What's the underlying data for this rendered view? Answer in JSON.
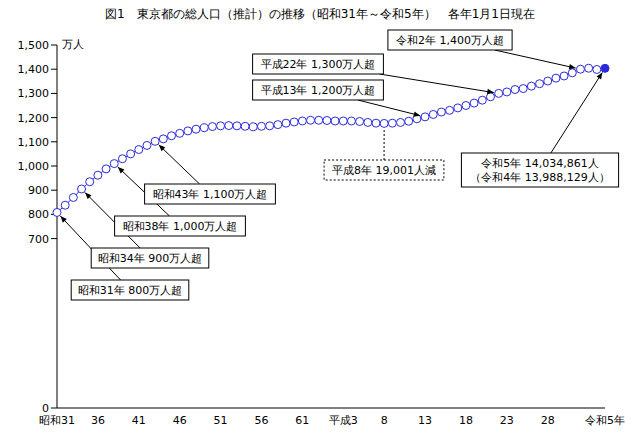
{
  "chart_data": {
    "type": "line",
    "title": "図1　東京都の総人口（推計）の推移（昭和31年～令和5年）",
    "subtitle": "各年1月1日現在",
    "y_label": "万人",
    "categories": [
      "昭和31",
      null,
      null,
      null,
      null,
      "36",
      null,
      null,
      null,
      null,
      "41",
      null,
      null,
      null,
      null,
      "46",
      null,
      null,
      null,
      null,
      "51",
      null,
      null,
      null,
      null,
      "56",
      null,
      null,
      null,
      null,
      "61",
      null,
      null,
      null,
      null,
      "平成3",
      null,
      null,
      null,
      null,
      "8",
      null,
      null,
      null,
      null,
      "13",
      null,
      null,
      null,
      null,
      "18",
      null,
      null,
      null,
      null,
      "23",
      null,
      null,
      null,
      null,
      "28",
      null,
      null,
      null,
      null,
      null,
      null,
      "令和5年"
    ],
    "values": [
      808,
      838,
      870,
      905,
      935,
      962,
      988,
      1010,
      1030,
      1050,
      1068,
      1085,
      1102,
      1112,
      1125,
      1135,
      1145,
      1152,
      1158,
      1163,
      1166,
      1167,
      1166,
      1164,
      1162,
      1164,
      1166,
      1171,
      1177,
      1182,
      1186,
      1189,
      1189,
      1188,
      1186,
      1186,
      1186,
      1184,
      1180,
      1177,
      1176,
      1177,
      1180,
      1185,
      1195,
      1203,
      1213,
      1223,
      1230,
      1240,
      1250,
      1260,
      1272,
      1286,
      1300,
      1306,
      1316,
      1320,
      1330,
      1340,
      1351,
      1363,
      1372,
      1385,
      1400,
      1404,
      1398.8129,
      1403.4861
    ],
    "color": "#2b2bd9",
    "marker": "circle",
    "ylim": [
      0,
      1500
    ],
    "yticks": [
      0,
      700,
      800,
      900,
      {
        "value": 1000,
        "label": "1,000"
      },
      {
        "value": 1100,
        "label": "1,100"
      },
      {
        "value": 1200,
        "label": "1,200"
      },
      {
        "value": 1300,
        "label": "1,300"
      },
      {
        "value": 1400,
        "label": "1,400"
      },
      {
        "value": 1500,
        "label": "1,500"
      }
    ],
    "grid": false,
    "annotations": [
      {
        "lines": [
          "昭和31年 800万人超"
        ]
      },
      {
        "lines": [
          "昭和34年 900万人超"
        ]
      },
      {
        "lines": [
          "昭和38年 1,000万人超"
        ]
      },
      {
        "lines": [
          "昭和43年 1,100万人超"
        ]
      },
      {
        "lines": [
          "平成8年 19,001人減"
        ]
      },
      {
        "lines": [
          "平成13年 1,200万人超"
        ]
      },
      {
        "lines": [
          "平成22年 1,300万人超"
        ]
      },
      {
        "lines": [
          "令和2年 1,400万人超"
        ]
      },
      {
        "lines": [
          "令和5年 14,034,861人",
          "（令和4年 13,988,129人）"
        ]
      }
    ]
  }
}
